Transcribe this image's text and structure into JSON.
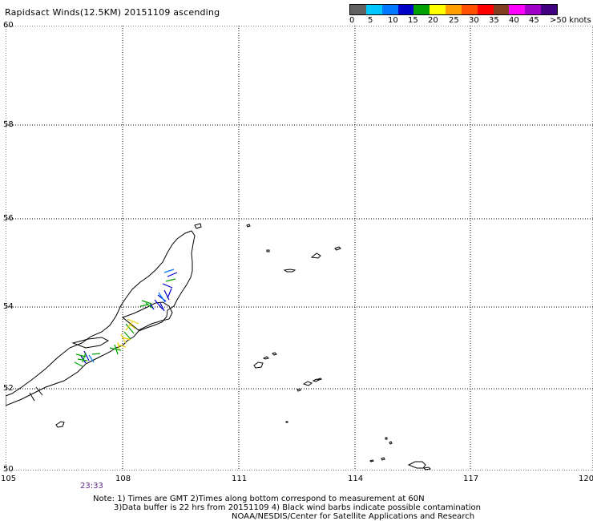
{
  "title": "Rapidsact Winds(12.5KM) 20151109 ascending",
  "scale": {
    "labels": [
      "0",
      "5",
      "10",
      "15",
      "20",
      "25",
      "30",
      "35",
      "40",
      "45",
      ">50 knots"
    ],
    "colors": [
      "#606060",
      "#00c8ff",
      "#0078ff",
      "#0000c8",
      "#00a000",
      "#ffff00",
      "#ffa000",
      "#ff5000",
      "#ff0000",
      "#804020",
      "#ff00ff",
      "#a000c8",
      "#400080"
    ]
  },
  "axes": {
    "lon_labels": [
      "105",
      "108",
      "111",
      "114",
      "117",
      "120"
    ],
    "lat_labels": [
      "60",
      "58",
      "56",
      "54",
      "52",
      "50"
    ]
  },
  "time_label": "23:33",
  "notes": {
    "line1": "Note: 1) Times are GMT 2)Times along bottom correspond to measurement at 60N",
    "line2": "3)Data buffer is 22 hrs from 20151109 4) Black wind barbs indicate possible contamination",
    "line3": "NOAA/NESDIS/Center for Satellite Applications and Research"
  },
  "colors": {
    "grid": "#000000",
    "coast": "#000000",
    "time": "#5a2a82"
  }
}
